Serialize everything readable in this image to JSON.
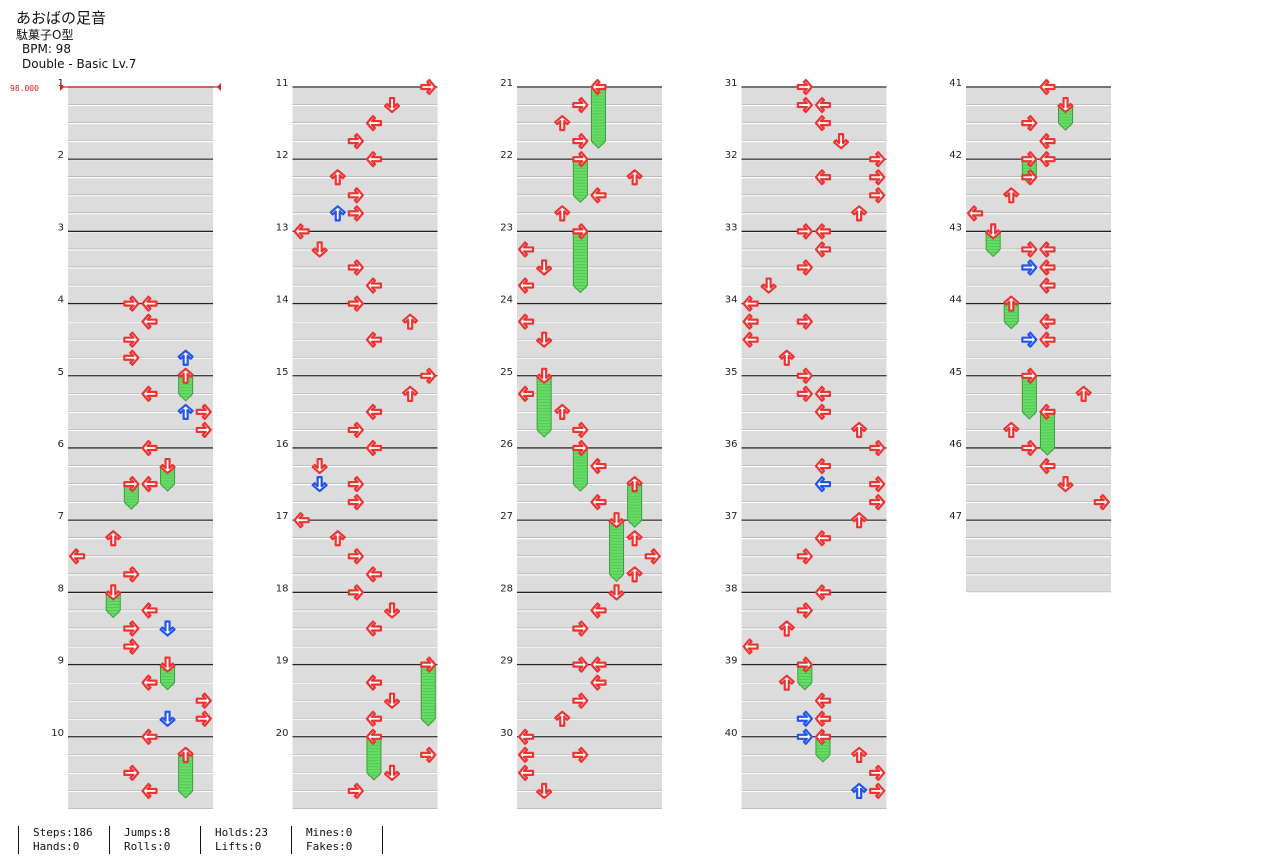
{
  "song": {
    "title": "あおばの足音",
    "artist": "駄菓子O型",
    "bpm_label": "BPM: 98",
    "difficulty": "Double - Basic Lv.7"
  },
  "bpm_marker": {
    "value": 98.0,
    "label": "98.000",
    "color": "#e02020"
  },
  "colors": {
    "arrow": "#ee3333",
    "arrow_alt": "#2255ee",
    "hold": "#66dd66",
    "band": "#dcdcdc",
    "line": "#222222"
  },
  "chart_data": {
    "type": "step-chart",
    "mode": "Double",
    "lanes": 8,
    "measures": 47,
    "measure_labels": [
      "1",
      "2",
      "3",
      "4",
      "5",
      "6",
      "7",
      "8",
      "9",
      "10",
      "11",
      "12",
      "13",
      "14",
      "15",
      "16",
      "17",
      "18",
      "19",
      "20",
      "21",
      "22",
      "23",
      "24",
      "25",
      "26",
      "27",
      "28",
      "29",
      "30",
      "31",
      "32",
      "33",
      "34",
      "35",
      "36",
      "37",
      "38",
      "39",
      "40",
      "41",
      "42",
      "43",
      "44",
      "45",
      "46",
      "47"
    ],
    "measures_per_column": 10,
    "rows_per_measure": 8,
    "notes": [
      {
        "m": 4,
        "r": 0,
        "lane": 3,
        "dir": "R"
      },
      {
        "m": 4,
        "r": 0,
        "lane": 4,
        "dir": "L"
      },
      {
        "m": 4,
        "r": 1,
        "lane": 4,
        "dir": "L"
      },
      {
        "m": 4,
        "r": 2,
        "lane": 3,
        "dir": "R"
      },
      {
        "m": 4,
        "r": 3,
        "lane": 6,
        "dir": "U",
        "alt": true
      },
      {
        "m": 4,
        "r": 3,
        "lane": 3,
        "dir": "R"
      },
      {
        "m": 5,
        "r": 0,
        "lane": 6,
        "dir": "U",
        "hold": 1
      },
      {
        "m": 5,
        "r": 1,
        "lane": 4,
        "dir": "L"
      },
      {
        "m": 5,
        "r": 2,
        "lane": 6,
        "dir": "U",
        "alt": true
      },
      {
        "m": 5,
        "r": 2,
        "lane": 7,
        "dir": "R"
      },
      {
        "m": 5,
        "r": 3,
        "lane": 7,
        "dir": "R"
      },
      {
        "m": 6,
        "r": 0,
        "lane": 4,
        "dir": "L"
      },
      {
        "m": 6,
        "r": 1,
        "lane": 5,
        "dir": "D",
        "hold": 1
      },
      {
        "m": 6,
        "r": 2,
        "lane": 3,
        "dir": "R",
        "hold": 1
      },
      {
        "m": 6,
        "r": 2,
        "lane": 4,
        "dir": "L"
      },
      {
        "m": 7,
        "r": 1,
        "lane": 2,
        "dir": "U"
      },
      {
        "m": 7,
        "r": 2,
        "lane": 0,
        "dir": "L"
      },
      {
        "m": 7,
        "r": 3,
        "lane": 3,
        "dir": "R"
      },
      {
        "m": 8,
        "r": 0,
        "lane": 2,
        "dir": "D",
        "hold": 1
      },
      {
        "m": 8,
        "r": 1,
        "lane": 4,
        "dir": "L"
      },
      {
        "m": 8,
        "r": 2,
        "lane": 3,
        "dir": "R"
      },
      {
        "m": 8,
        "r": 2,
        "lane": 5,
        "dir": "D",
        "alt": true
      },
      {
        "m": 8,
        "r": 3,
        "lane": 3,
        "dir": "R"
      },
      {
        "m": 9,
        "r": 0,
        "lane": 5,
        "dir": "D",
        "hold": 1
      },
      {
        "m": 9,
        "r": 1,
        "lane": 4,
        "dir": "L"
      },
      {
        "m": 9,
        "r": 2,
        "lane": 7,
        "dir": "R"
      },
      {
        "m": 9,
        "r": 3,
        "lane": 5,
        "dir": "D",
        "alt": true
      },
      {
        "m": 9,
        "r": 3,
        "lane": 7,
        "dir": "R"
      },
      {
        "m": 10,
        "r": 0,
        "lane": 4,
        "dir": "L"
      },
      {
        "m": 10,
        "r": 1,
        "lane": 6,
        "dir": "U",
        "hold": 2
      },
      {
        "m": 10,
        "r": 2,
        "lane": 3,
        "dir": "R"
      },
      {
        "m": 10,
        "r": 3,
        "lane": 4,
        "dir": "L"
      },
      {
        "m": 11,
        "r": 0,
        "lane": 7,
        "dir": "R"
      },
      {
        "m": 11,
        "r": 1,
        "lane": 5,
        "dir": "D"
      },
      {
        "m": 11,
        "r": 2,
        "lane": 4,
        "dir": "L"
      },
      {
        "m": 11,
        "r": 3,
        "lane": 3,
        "dir": "R"
      },
      {
        "m": 12,
        "r": 0,
        "lane": 4,
        "dir": "L"
      },
      {
        "m": 12,
        "r": 1,
        "lane": 2,
        "dir": "U"
      },
      {
        "m": 12,
        "r": 2,
        "lane": 3,
        "dir": "R"
      },
      {
        "m": 12,
        "r": 3,
        "lane": 2,
        "dir": "U",
        "alt": true
      },
      {
        "m": 12,
        "r": 3,
        "lane": 3,
        "dir": "R"
      },
      {
        "m": 13,
        "r": 0,
        "lane": 0,
        "dir": "L"
      },
      {
        "m": 13,
        "r": 1,
        "lane": 1,
        "dir": "D"
      },
      {
        "m": 13,
        "r": 2,
        "lane": 3,
        "dir": "R"
      },
      {
        "m": 13,
        "r": 3,
        "lane": 4,
        "dir": "L"
      },
      {
        "m": 14,
        "r": 0,
        "lane": 3,
        "dir": "R"
      },
      {
        "m": 14,
        "r": 1,
        "lane": 6,
        "dir": "U"
      },
      {
        "m": 14,
        "r": 2,
        "lane": 4,
        "dir": "L"
      },
      {
        "m": 15,
        "r": 0,
        "lane": 7,
        "dir": "R"
      },
      {
        "m": 15,
        "r": 1,
        "lane": 6,
        "dir": "U"
      },
      {
        "m": 15,
        "r": 2,
        "lane": 4,
        "dir": "L"
      },
      {
        "m": 15,
        "r": 3,
        "lane": 3,
        "dir": "R"
      },
      {
        "m": 16,
        "r": 0,
        "lane": 4,
        "dir": "L"
      },
      {
        "m": 16,
        "r": 1,
        "lane": 1,
        "dir": "D"
      },
      {
        "m": 16,
        "r": 2,
        "lane": 1,
        "dir": "D",
        "alt": true
      },
      {
        "m": 16,
        "r": 2,
        "lane": 3,
        "dir": "R"
      },
      {
        "m": 16,
        "r": 3,
        "lane": 3,
        "dir": "R"
      },
      {
        "m": 17,
        "r": 0,
        "lane": 0,
        "dir": "L"
      },
      {
        "m": 17,
        "r": 1,
        "lane": 2,
        "dir": "U"
      },
      {
        "m": 17,
        "r": 2,
        "lane": 3,
        "dir": "R"
      },
      {
        "m": 17,
        "r": 3,
        "lane": 4,
        "dir": "L"
      },
      {
        "m": 18,
        "r": 0,
        "lane": 3,
        "dir": "R"
      },
      {
        "m": 18,
        "r": 1,
        "lane": 5,
        "dir": "D"
      },
      {
        "m": 18,
        "r": 2,
        "lane": 4,
        "dir": "L"
      },
      {
        "m": 19,
        "r": 0,
        "lane": 7,
        "dir": "R",
        "hold": 3
      },
      {
        "m": 19,
        "r": 1,
        "lane": 4,
        "dir": "L"
      },
      {
        "m": 19,
        "r": 2,
        "lane": 5,
        "dir": "D"
      },
      {
        "m": 19,
        "r": 3,
        "lane": 4,
        "dir": "L"
      },
      {
        "m": 20,
        "r": 0,
        "lane": 4,
        "dir": "L",
        "hold": 2
      },
      {
        "m": 20,
        "r": 1,
        "lane": 7,
        "dir": "R"
      },
      {
        "m": 20,
        "r": 2,
        "lane": 5,
        "dir": "D"
      },
      {
        "m": 20,
        "r": 3,
        "lane": 3,
        "dir": "R"
      },
      {
        "m": 21,
        "r": 0,
        "lane": 4,
        "dir": "L",
        "hold": 3
      },
      {
        "m": 21,
        "r": 1,
        "lane": 3,
        "dir": "R"
      },
      {
        "m": 21,
        "r": 2,
        "lane": 2,
        "dir": "U"
      },
      {
        "m": 21,
        "r": 3,
        "lane": 3,
        "dir": "R"
      },
      {
        "m": 22,
        "r": 0,
        "lane": 3,
        "dir": "R",
        "hold": 2
      },
      {
        "m": 22,
        "r": 1,
        "lane": 6,
        "dir": "U"
      },
      {
        "m": 22,
        "r": 2,
        "lane": 4,
        "dir": "L"
      },
      {
        "m": 22,
        "r": 3,
        "lane": 2,
        "dir": "U"
      },
      {
        "m": 23,
        "r": 0,
        "lane": 3,
        "dir": "R",
        "hold": 3
      },
      {
        "m": 23,
        "r": 1,
        "lane": 0,
        "dir": "L"
      },
      {
        "m": 23,
        "r": 2,
        "lane": 1,
        "dir": "D"
      },
      {
        "m": 23,
        "r": 3,
        "lane": 0,
        "dir": "L"
      },
      {
        "m": 24,
        "r": 1,
        "lane": 0,
        "dir": "L"
      },
      {
        "m": 24,
        "r": 2,
        "lane": 1,
        "dir": "D"
      },
      {
        "m": 25,
        "r": 0,
        "lane": 1,
        "dir": "D",
        "hold": 3
      },
      {
        "m": 25,
        "r": 1,
        "lane": 0,
        "dir": "L"
      },
      {
        "m": 25,
        "r": 2,
        "lane": 2,
        "dir": "U"
      },
      {
        "m": 25,
        "r": 3,
        "lane": 3,
        "dir": "R"
      },
      {
        "m": 26,
        "r": 0,
        "lane": 3,
        "dir": "R",
        "hold": 2
      },
      {
        "m": 26,
        "r": 1,
        "lane": 4,
        "dir": "L"
      },
      {
        "m": 26,
        "r": 2,
        "lane": 6,
        "dir": "U",
        "hold": 2
      },
      {
        "m": 26,
        "r": 3,
        "lane": 4,
        "dir": "L"
      },
      {
        "m": 27,
        "r": 0,
        "lane": 5,
        "dir": "D",
        "hold": 3
      },
      {
        "m": 27,
        "r": 1,
        "lane": 6,
        "dir": "U"
      },
      {
        "m": 27,
        "r": 2,
        "lane": 7,
        "dir": "R"
      },
      {
        "m": 27,
        "r": 3,
        "lane": 6,
        "dir": "U"
      },
      {
        "m": 28,
        "r": 0,
        "lane": 5,
        "dir": "D"
      },
      {
        "m": 28,
        "r": 1,
        "lane": 4,
        "dir": "L"
      },
      {
        "m": 28,
        "r": 2,
        "lane": 3,
        "dir": "R"
      },
      {
        "m": 29,
        "r": 0,
        "lane": 3,
        "dir": "R"
      },
      {
        "m": 29,
        "r": 0,
        "lane": 4,
        "dir": "L"
      },
      {
        "m": 29,
        "r": 1,
        "lane": 4,
        "dir": "L"
      },
      {
        "m": 29,
        "r": 2,
        "lane": 3,
        "dir": "R"
      },
      {
        "m": 29,
        "r": 3,
        "lane": 2,
        "dir": "U"
      },
      {
        "m": 30,
        "r": 0,
        "lane": 0,
        "dir": "L"
      },
      {
        "m": 30,
        "r": 1,
        "lane": 0,
        "dir": "L"
      },
      {
        "m": 30,
        "r": 1,
        "lane": 3,
        "dir": "R"
      },
      {
        "m": 30,
        "r": 2,
        "lane": 0,
        "dir": "L"
      },
      {
        "m": 30,
        "r": 3,
        "lane": 1,
        "dir": "D"
      },
      {
        "m": 31,
        "r": 0,
        "lane": 3,
        "dir": "R"
      },
      {
        "m": 31,
        "r": 1,
        "lane": 3,
        "dir": "R"
      },
      {
        "m": 31,
        "r": 1,
        "lane": 4,
        "dir": "L"
      },
      {
        "m": 31,
        "r": 2,
        "lane": 4,
        "dir": "L"
      },
      {
        "m": 31,
        "r": 3,
        "lane": 5,
        "dir": "D"
      },
      {
        "m": 32,
        "r": 0,
        "lane": 7,
        "dir": "R"
      },
      {
        "m": 32,
        "r": 1,
        "lane": 4,
        "dir": "L"
      },
      {
        "m": 32,
        "r": 1,
        "lane": 7,
        "dir": "R"
      },
      {
        "m": 32,
        "r": 2,
        "lane": 7,
        "dir": "R"
      },
      {
        "m": 32,
        "r": 3,
        "lane": 6,
        "dir": "U"
      },
      {
        "m": 33,
        "r": 0,
        "lane": 3,
        "dir": "R"
      },
      {
        "m": 33,
        "r": 0,
        "lane": 4,
        "dir": "L"
      },
      {
        "m": 33,
        "r": 1,
        "lane": 4,
        "dir": "L"
      },
      {
        "m": 33,
        "r": 2,
        "lane": 3,
        "dir": "R"
      },
      {
        "m": 33,
        "r": 3,
        "lane": 1,
        "dir": "D"
      },
      {
        "m": 34,
        "r": 0,
        "lane": 0,
        "dir": "L"
      },
      {
        "m": 34,
        "r": 1,
        "lane": 0,
        "dir": "L"
      },
      {
        "m": 34,
        "r": 1,
        "lane": 3,
        "dir": "R"
      },
      {
        "m": 34,
        "r": 2,
        "lane": 0,
        "dir": "L"
      },
      {
        "m": 34,
        "r": 3,
        "lane": 2,
        "dir": "U"
      },
      {
        "m": 35,
        "r": 0,
        "lane": 3,
        "dir": "R"
      },
      {
        "m": 35,
        "r": 1,
        "lane": 3,
        "dir": "R"
      },
      {
        "m": 35,
        "r": 1,
        "lane": 4,
        "dir": "L"
      },
      {
        "m": 35,
        "r": 2,
        "lane": 4,
        "dir": "L"
      },
      {
        "m": 35,
        "r": 3,
        "lane": 6,
        "dir": "U"
      },
      {
        "m": 36,
        "r": 0,
        "lane": 7,
        "dir": "R"
      },
      {
        "m": 36,
        "r": 1,
        "lane": 4,
        "dir": "L"
      },
      {
        "m": 36,
        "r": 2,
        "lane": 4,
        "dir": "L",
        "alt": true
      },
      {
        "m": 36,
        "r": 2,
        "lane": 7,
        "dir": "R"
      },
      {
        "m": 36,
        "r": 3,
        "lane": 7,
        "dir": "R"
      },
      {
        "m": 37,
        "r": 0,
        "lane": 6,
        "dir": "U"
      },
      {
        "m": 37,
        "r": 1,
        "lane": 4,
        "dir": "L"
      },
      {
        "m": 37,
        "r": 2,
        "lane": 3,
        "dir": "R"
      },
      {
        "m": 38,
        "r": 0,
        "lane": 4,
        "dir": "L"
      },
      {
        "m": 38,
        "r": 1,
        "lane": 3,
        "dir": "R"
      },
      {
        "m": 38,
        "r": 2,
        "lane": 2,
        "dir": "U"
      },
      {
        "m": 38,
        "r": 3,
        "lane": 0,
        "dir": "L"
      },
      {
        "m": 39,
        "r": 0,
        "lane": 3,
        "dir": "R",
        "hold": 1
      },
      {
        "m": 39,
        "r": 1,
        "lane": 2,
        "dir": "U"
      },
      {
        "m": 39,
        "r": 2,
        "lane": 4,
        "dir": "L"
      },
      {
        "m": 39,
        "r": 3,
        "lane": 3,
        "dir": "R",
        "alt": true
      },
      {
        "m": 39,
        "r": 3,
        "lane": 4,
        "dir": "L"
      },
      {
        "m": 40,
        "r": 0,
        "lane": 3,
        "dir": "R",
        "alt": true
      },
      {
        "m": 40,
        "r": 0,
        "lane": 4,
        "dir": "L",
        "hold": 1
      },
      {
        "m": 40,
        "r": 1,
        "lane": 6,
        "dir": "U"
      },
      {
        "m": 40,
        "r": 2,
        "lane": 7,
        "dir": "R"
      },
      {
        "m": 40,
        "r": 3,
        "lane": 6,
        "dir": "U",
        "alt": true
      },
      {
        "m": 40,
        "r": 3,
        "lane": 7,
        "dir": "R"
      },
      {
        "m": 41,
        "r": 0,
        "lane": 4,
        "dir": "L"
      },
      {
        "m": 41,
        "r": 1,
        "lane": 5,
        "dir": "D",
        "hold": 1
      },
      {
        "m": 41,
        "r": 2,
        "lane": 3,
        "dir": "R"
      },
      {
        "m": 41,
        "r": 3,
        "lane": 4,
        "dir": "L"
      },
      {
        "m": 42,
        "r": 0,
        "lane": 3,
        "dir": "R",
        "hold": 1
      },
      {
        "m": 42,
        "r": 0,
        "lane": 4,
        "dir": "L"
      },
      {
        "m": 42,
        "r": 1,
        "lane": 3,
        "dir": "R"
      },
      {
        "m": 42,
        "r": 2,
        "lane": 2,
        "dir": "U"
      },
      {
        "m": 42,
        "r": 3,
        "lane": 0,
        "dir": "L"
      },
      {
        "m": 43,
        "r": 0,
        "lane": 1,
        "dir": "D",
        "hold": 1
      },
      {
        "m": 43,
        "r": 1,
        "lane": 3,
        "dir": "R"
      },
      {
        "m": 43,
        "r": 1,
        "lane": 4,
        "dir": "L"
      },
      {
        "m": 43,
        "r": 2,
        "lane": 3,
        "dir": "R",
        "alt": true
      },
      {
        "m": 43,
        "r": 2,
        "lane": 4,
        "dir": "L"
      },
      {
        "m": 43,
        "r": 3,
        "lane": 4,
        "dir": "L"
      },
      {
        "m": 44,
        "r": 0,
        "lane": 2,
        "dir": "U",
        "hold": 1
      },
      {
        "m": 44,
        "r": 1,
        "lane": 4,
        "dir": "L"
      },
      {
        "m": 44,
        "r": 2,
        "lane": 3,
        "dir": "R",
        "alt": true
      },
      {
        "m": 44,
        "r": 2,
        "lane": 4,
        "dir": "L"
      },
      {
        "m": 45,
        "r": 0,
        "lane": 3,
        "dir": "R",
        "hold": 2
      },
      {
        "m": 45,
        "r": 1,
        "lane": 6,
        "dir": "U"
      },
      {
        "m": 45,
        "r": 2,
        "lane": 4,
        "dir": "L",
        "hold": 2
      },
      {
        "m": 45,
        "r": 3,
        "lane": 2,
        "dir": "U"
      },
      {
        "m": 46,
        "r": 0,
        "lane": 3,
        "dir": "R"
      },
      {
        "m": 46,
        "r": 1,
        "lane": 4,
        "dir": "L"
      },
      {
        "m": 46,
        "r": 2,
        "lane": 5,
        "dir": "D"
      },
      {
        "m": 46,
        "r": 3,
        "lane": 7,
        "dir": "R"
      }
    ]
  },
  "stats": {
    "steps": "Steps:186",
    "jumps": "Jumps:8",
    "holds": "Holds:23",
    "mines": "Mines:0",
    "hands": "Hands:0",
    "rolls": "Rolls:0",
    "lifts": "Lifts:0",
    "fakes": "Fakes:0"
  }
}
